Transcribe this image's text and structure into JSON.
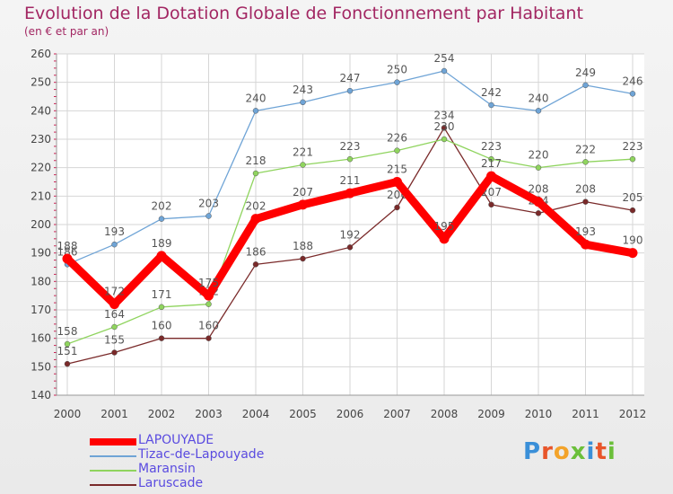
{
  "title": "Evolution de la Dotation Globale de Fonctionnement par Habitant",
  "subtitle": "(en € et par an)",
  "logo": {
    "text": "Proxiti",
    "letter_colors": [
      "#3a8fd8",
      "#e8552a",
      "#f3a32a",
      "#6bbf3a",
      "#3a8fd8",
      "#e8552a",
      "#6bbf3a"
    ]
  },
  "chart_data": {
    "type": "line",
    "title": "Evolution de la Dotation Globale de Fonctionnement par Habitant",
    "subtitle": "(en € et par an)",
    "x": [
      "2000",
      "2001",
      "2002",
      "2003",
      "2004",
      "2005",
      "2006",
      "2007",
      "2008",
      "2009",
      "2010",
      "2011",
      "2012"
    ],
    "ylim": [
      140,
      260
    ],
    "yticks": [
      140,
      150,
      160,
      170,
      180,
      190,
      200,
      210,
      220,
      230,
      240,
      250,
      260
    ],
    "grid": true,
    "legend_position": "bottom-left",
    "series": [
      {
        "name": "LAPOUYADE",
        "color": "#ff0000",
        "values": [
          188,
          172,
          189,
          175,
          202,
          207,
          211,
          215,
          195,
          217,
          208,
          193,
          190
        ]
      },
      {
        "name": "Tizac-de-Lapouyade",
        "color": "#6fa4d6",
        "values": [
          186,
          193,
          202,
          203,
          240,
          243,
          247,
          250,
          254,
          242,
          240,
          249,
          246
        ]
      },
      {
        "name": "Maransin",
        "color": "#8fd45e",
        "values": [
          158,
          164,
          171,
          172,
          218,
          221,
          223,
          226,
          230,
          223,
          220,
          222,
          223
        ]
      },
      {
        "name": "Laruscade",
        "color": "#7a2a2a",
        "values": [
          151,
          155,
          160,
          160,
          186,
          188,
          192,
          206,
          234,
          207,
          204,
          208,
          205
        ]
      }
    ]
  }
}
